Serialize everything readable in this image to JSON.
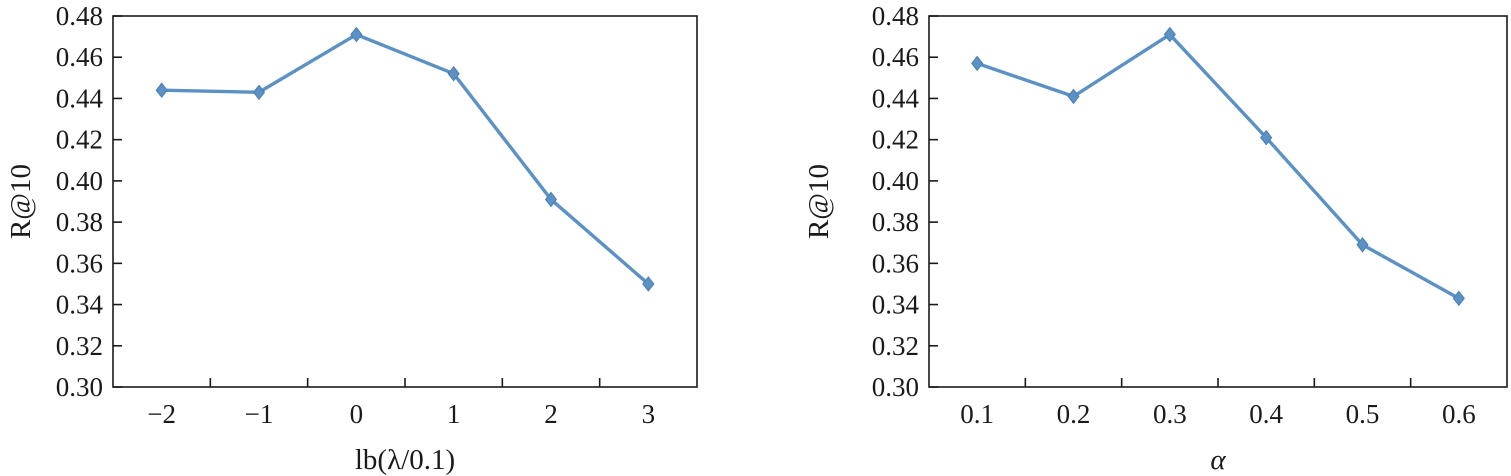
{
  "chart_data": [
    {
      "type": "line",
      "xlabel": "lb(λ/0.1)",
      "ylabel": "R@10",
      "categories": [
        "−2",
        "−1",
        "0",
        "1",
        "2",
        "3"
      ],
      "x": [
        -2,
        -1,
        0,
        1,
        2,
        3
      ],
      "series": [
        {
          "values": [
            0.444,
            0.443,
            0.471,
            0.452,
            0.391,
            0.35
          ]
        }
      ],
      "ylim": [
        0.3,
        0.48
      ],
      "yticks": [
        "0.30",
        "0.32",
        "0.34",
        "0.36",
        "0.38",
        "0.40",
        "0.42",
        "0.44",
        "0.46",
        "0.48"
      ],
      "grid": false,
      "color": "#5b91c4",
      "marker": "diamond"
    },
    {
      "type": "line",
      "xlabel": "α",
      "ylabel": "R@10",
      "categories": [
        "0.1",
        "0.2",
        "0.3",
        "0.4",
        "0.5",
        "0.6"
      ],
      "x": [
        0.1,
        0.2,
        0.3,
        0.4,
        0.5,
        0.6
      ],
      "series": [
        {
          "values": [
            0.457,
            0.441,
            0.471,
            0.421,
            0.369,
            0.343
          ]
        }
      ],
      "ylim": [
        0.3,
        0.48
      ],
      "yticks": [
        "0.30",
        "0.32",
        "0.34",
        "0.36",
        "0.38",
        "0.40",
        "0.42",
        "0.44",
        "0.46",
        "0.48"
      ],
      "grid": false,
      "color": "#5b91c4",
      "marker": "diamond"
    }
  ]
}
